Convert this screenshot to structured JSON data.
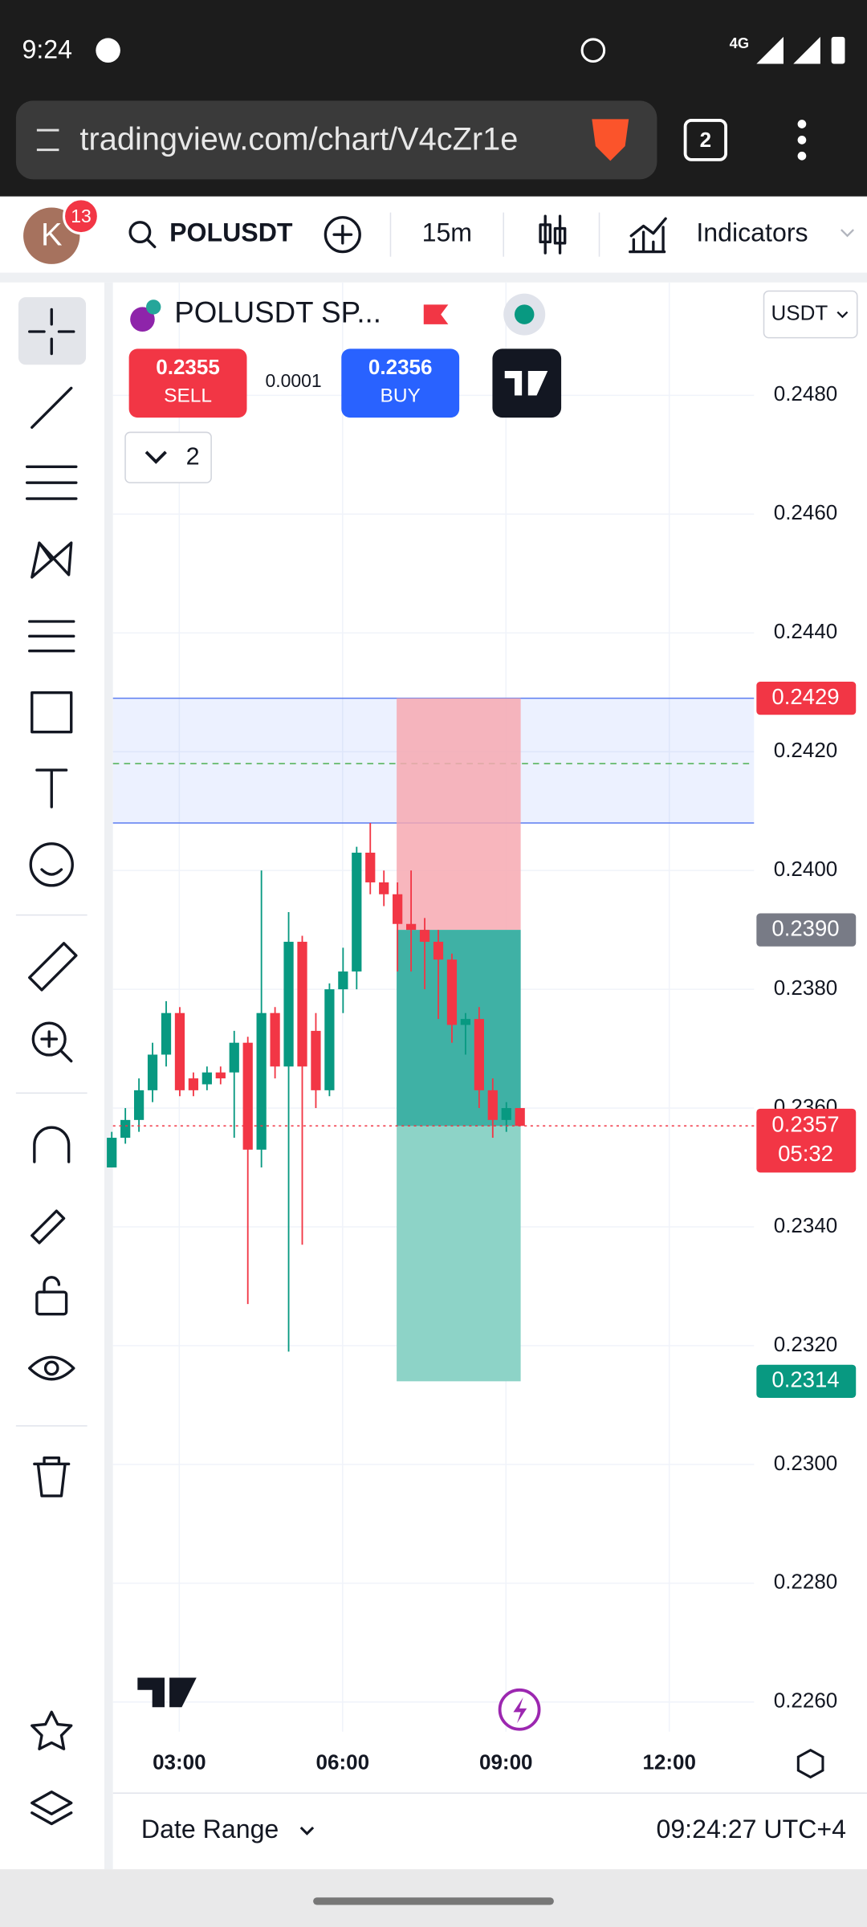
{
  "status_bar": {
    "time": "9:24",
    "network": "4G"
  },
  "browser": {
    "url": "tradingview.com/chart/V4cZr1e",
    "tab_count": "2"
  },
  "toolbar": {
    "avatar": "K",
    "badge": "13",
    "symbol": "POLUSDT",
    "interval": "15m",
    "indicators": "Indicators"
  },
  "legend": {
    "title": "POLUSDT SP...",
    "sell_price": "0.2355",
    "sell": "SELL",
    "spread": "0.0001",
    "buy_price": "0.2356",
    "buy": "BUY",
    "collapsed_count": "2"
  },
  "currency": "USDT",
  "chart": {
    "type": "candlestick",
    "ylim": [
      0.2255,
      0.2499
    ],
    "yticks": [
      {
        "value": 0.248,
        "label": "0.2480"
      },
      {
        "value": 0.246,
        "label": "0.2460"
      },
      {
        "value": 0.244,
        "label": "0.2440"
      },
      {
        "value": 0.242,
        "label": "0.2420"
      },
      {
        "value": 0.24,
        "label": "0.2400"
      },
      {
        "value": 0.238,
        "label": "0.2380"
      },
      {
        "value": 0.236,
        "label": "0.2360"
      },
      {
        "value": 0.234,
        "label": "0.2340"
      },
      {
        "value": 0.232,
        "label": "0.2320"
      },
      {
        "value": 0.23,
        "label": "0.2300"
      },
      {
        "value": 0.228,
        "label": "0.2280"
      },
      {
        "value": 0.226,
        "label": "0.2260"
      }
    ],
    "xticks": [
      "03:00",
      "06:00",
      "09:00",
      "12:00"
    ],
    "grid": true,
    "up_color": "#089981",
    "down_color": "#f23645",
    "candles": [
      {
        "o": 0.235,
        "h": 0.2356,
        "l": 0.235,
        "c": 0.2355
      },
      {
        "o": 0.2355,
        "h": 0.236,
        "l": 0.2354,
        "c": 0.2358
      },
      {
        "o": 0.2358,
        "h": 0.2365,
        "l": 0.2356,
        "c": 0.2363
      },
      {
        "o": 0.2363,
        "h": 0.2371,
        "l": 0.2361,
        "c": 0.2369
      },
      {
        "o": 0.2369,
        "h": 0.2378,
        "l": 0.2367,
        "c": 0.2376
      },
      {
        "o": 0.2376,
        "h": 0.2377,
        "l": 0.2362,
        "c": 0.2363
      },
      {
        "o": 0.2365,
        "h": 0.2366,
        "l": 0.2362,
        "c": 0.2363
      },
      {
        "o": 0.2364,
        "h": 0.2367,
        "l": 0.2363,
        "c": 0.2366
      },
      {
        "o": 0.2366,
        "h": 0.2367,
        "l": 0.2364,
        "c": 0.2365
      },
      {
        "o": 0.2366,
        "h": 0.2373,
        "l": 0.2355,
        "c": 0.2371
      },
      {
        "o": 0.2371,
        "h": 0.2372,
        "l": 0.2327,
        "c": 0.2353
      },
      {
        "o": 0.2353,
        "h": 0.24,
        "l": 0.235,
        "c": 0.2376
      },
      {
        "o": 0.2376,
        "h": 0.2377,
        "l": 0.2365,
        "c": 0.2367
      },
      {
        "o": 0.2367,
        "h": 0.2393,
        "l": 0.2319,
        "c": 0.2388
      },
      {
        "o": 0.2388,
        "h": 0.2389,
        "l": 0.2337,
        "c": 0.2367
      },
      {
        "o": 0.2373,
        "h": 0.2376,
        "l": 0.236,
        "c": 0.2363
      },
      {
        "o": 0.2363,
        "h": 0.2381,
        "l": 0.2362,
        "c": 0.238
      },
      {
        "o": 0.238,
        "h": 0.2387,
        "l": 0.2376,
        "c": 0.2383
      },
      {
        "o": 0.2383,
        "h": 0.2404,
        "l": 0.238,
        "c": 0.2403
      },
      {
        "o": 0.2403,
        "h": 0.2408,
        "l": 0.2396,
        "c": 0.2398
      },
      {
        "o": 0.2398,
        "h": 0.24,
        "l": 0.2394,
        "c": 0.2396
      },
      {
        "o": 0.2396,
        "h": 0.2398,
        "l": 0.2383,
        "c": 0.2391
      },
      {
        "o": 0.2391,
        "h": 0.24,
        "l": 0.2383,
        "c": 0.239
      },
      {
        "o": 0.239,
        "h": 0.2392,
        "l": 0.238,
        "c": 0.2388
      },
      {
        "o": 0.2388,
        "h": 0.239,
        "l": 0.2375,
        "c": 0.2385
      },
      {
        "o": 0.2385,
        "h": 0.2386,
        "l": 0.2371,
        "c": 0.2374
      },
      {
        "o": 0.2374,
        "h": 0.2376,
        "l": 0.2369,
        "c": 0.2375
      },
      {
        "o": 0.2375,
        "h": 0.2377,
        "l": 0.236,
        "c": 0.2363
      },
      {
        "o": 0.2363,
        "h": 0.2365,
        "l": 0.2355,
        "c": 0.2358
      },
      {
        "o": 0.2358,
        "h": 0.2361,
        "l": 0.2356,
        "c": 0.236
      },
      {
        "o": 0.236,
        "h": 0.236,
        "l": 0.2357,
        "c": 0.2357
      }
    ],
    "zone": {
      "top": 0.2429,
      "bottom": 0.2408,
      "mid": 0.2418
    },
    "position": {
      "stop": {
        "value": 0.2429,
        "label": "0.2429"
      },
      "entry": {
        "value": 0.239,
        "label": "0.2390"
      },
      "target": {
        "value": 0.2314,
        "label": "0.2314"
      }
    },
    "current_price": {
      "value": 0.2357,
      "label": "0.2357"
    },
    "countdown": "05:32"
  },
  "footer": {
    "date_range": "Date Range",
    "clock": "09:24:27 UTC+4"
  }
}
